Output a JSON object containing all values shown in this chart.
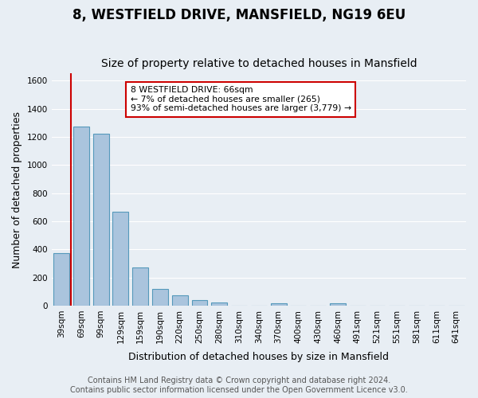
{
  "title": "8, WESTFIELD DRIVE, MANSFIELD, NG19 6EU",
  "subtitle": "Size of property relative to detached houses in Mansfield",
  "xlabel": "Distribution of detached houses by size in Mansfield",
  "ylabel": "Number of detached properties",
  "footer_line1": "Contains HM Land Registry data © Crown copyright and database right 2024.",
  "footer_line2": "Contains public sector information licensed under the Open Government Licence v3.0.",
  "categories": [
    "39sqm",
    "69sqm",
    "99sqm",
    "129sqm",
    "159sqm",
    "190sqm",
    "220sqm",
    "250sqm",
    "280sqm",
    "310sqm",
    "340sqm",
    "370sqm",
    "400sqm",
    "430sqm",
    "460sqm",
    "491sqm",
    "521sqm",
    "551sqm",
    "581sqm",
    "611sqm",
    "641sqm"
  ],
  "values": [
    375,
    1270,
    1220,
    670,
    270,
    118,
    75,
    38,
    20,
    0,
    0,
    18,
    0,
    0,
    18,
    0,
    0,
    0,
    0,
    0,
    0
  ],
  "bar_color": "#aac4dd",
  "bar_edge_color": "#5599bb",
  "highlight_line_color": "#cc0000",
  "annotation_title": "8 WESTFIELD DRIVE: 66sqm",
  "annotation_line1": "← 7% of detached houses are smaller (265)",
  "annotation_line2": "93% of semi-detached houses are larger (3,779) →",
  "annotation_box_color": "#ffffff",
  "annotation_box_edge_color": "#cc0000",
  "ylim": [
    0,
    1650
  ],
  "yticks": [
    0,
    200,
    400,
    600,
    800,
    1000,
    1200,
    1400,
    1600
  ],
  "bg_color": "#e8eef4",
  "plot_bg_color": "#e8eef4",
  "grid_color": "#ffffff",
  "title_fontsize": 12,
  "subtitle_fontsize": 10,
  "axis_label_fontsize": 9,
  "tick_fontsize": 7.5,
  "footer_fontsize": 7
}
